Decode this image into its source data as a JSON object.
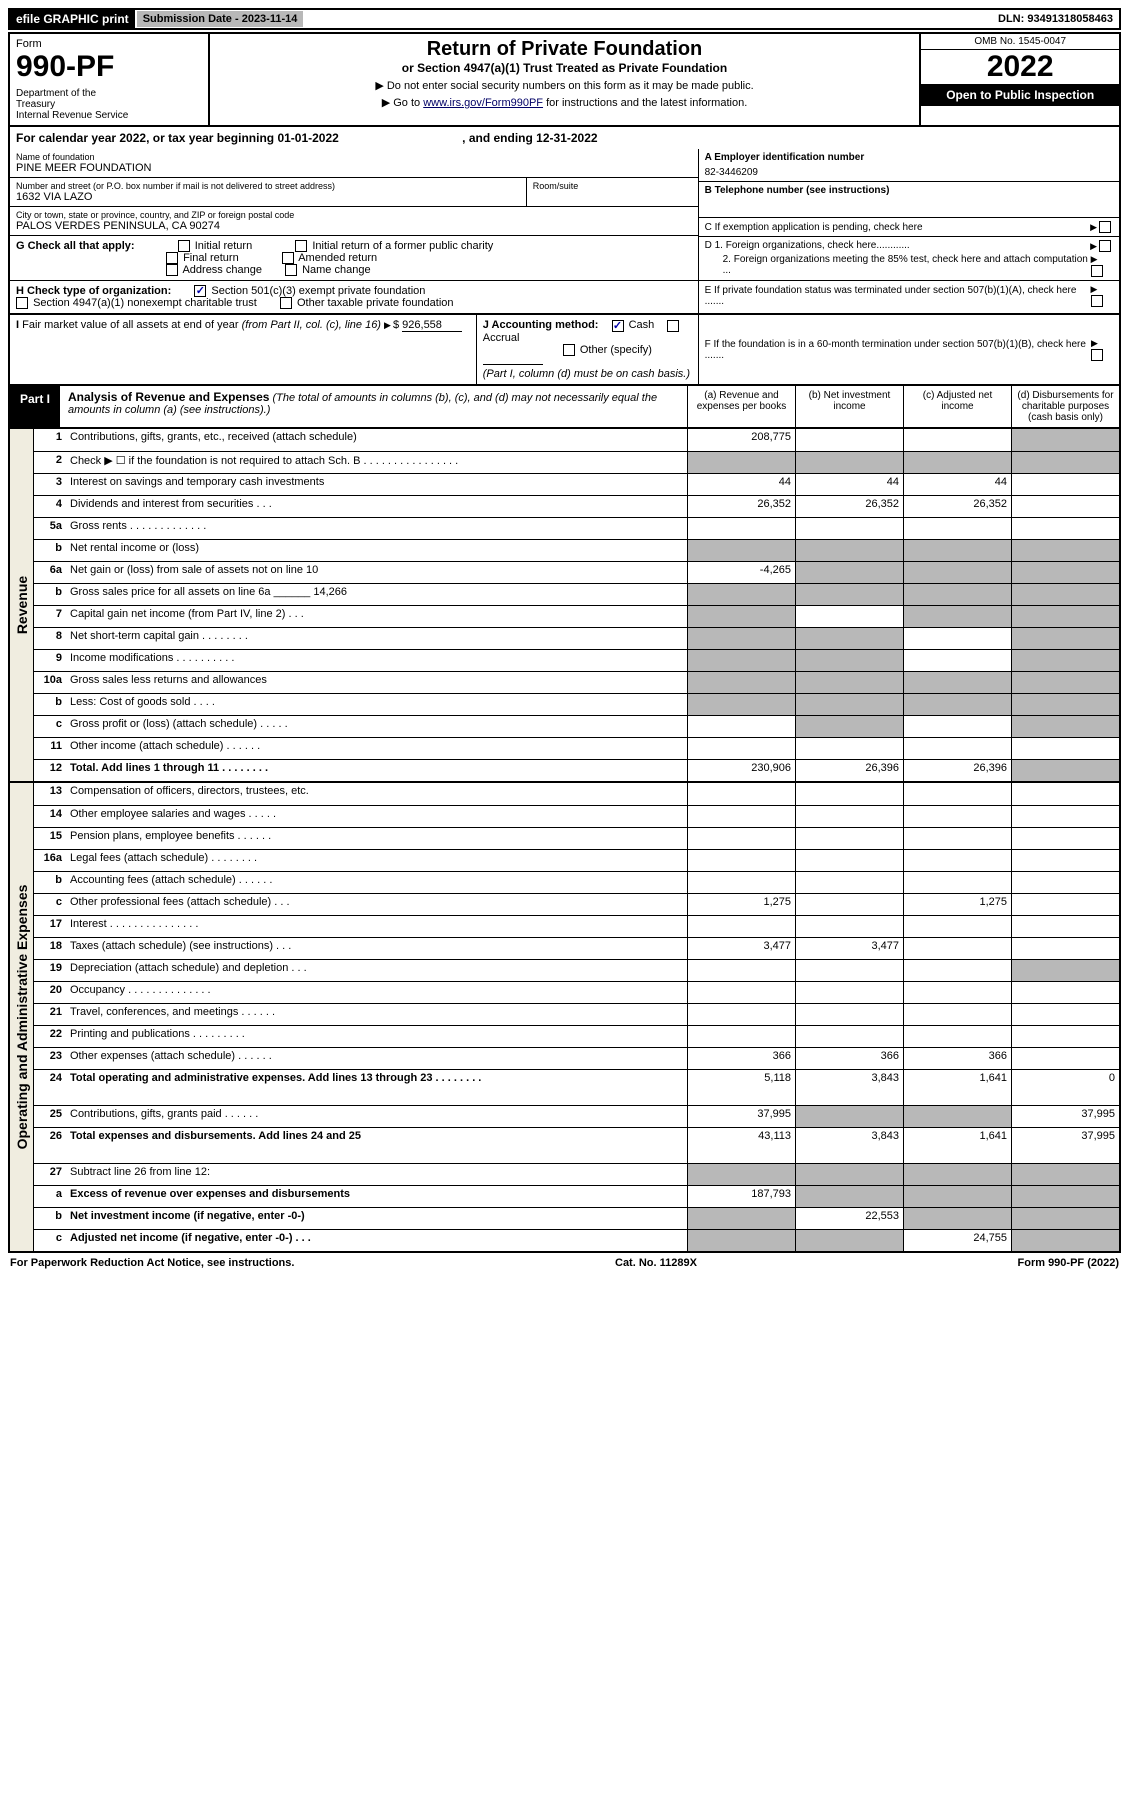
{
  "header": {
    "efile": "efile GRAPHIC print",
    "submission": "Submission Date - 2023-11-14",
    "dln": "DLN: 93491318058463"
  },
  "form": {
    "word": "Form",
    "number": "990-PF",
    "dept": "Department of the Treasury\nInternal Revenue Service",
    "title": "Return of Private Foundation",
    "subtitle": "or Section 4947(a)(1) Trust Treated as Private Foundation",
    "instr1": "▶ Do not enter social security numbers on this form as it may be made public.",
    "instr2_pre": "▶ Go to ",
    "instr2_link": "www.irs.gov/Form990PF",
    "instr2_post": " for instructions and the latest information.",
    "omb": "OMB No. 1545-0047",
    "year": "2022",
    "open": "Open to Public Inspection"
  },
  "cal": {
    "text": "For calendar year 2022, or tax year beginning 01-01-2022",
    "ending": ", and ending 12-31-2022"
  },
  "info": {
    "name_lbl": "Name of foundation",
    "name": "PINE MEER FOUNDATION",
    "addr_lbl": "Number and street (or P.O. box number if mail is not delivered to street address)",
    "addr": "1632 VIA LAZO",
    "room_lbl": "Room/suite",
    "city_lbl": "City or town, state or province, country, and ZIP or foreign postal code",
    "city": "PALOS VERDES PENINSULA, CA  90274",
    "ein_lbl": "A Employer identification number",
    "ein": "82-3446209",
    "tel_lbl": "B Telephone number (see instructions)",
    "c_lbl": "C If exemption application is pending, check here",
    "d1_lbl": "D 1. Foreign organizations, check here............",
    "d2_lbl": "2. Foreign organizations meeting the 85% test, check here and attach computation ...",
    "e_lbl": "E If private foundation status was terminated under section 507(b)(1)(A), check here .......",
    "f_lbl": "F If the foundation is in a 60-month termination under section 507(b)(1)(B), check here .......",
    "g_lbl": "G Check all that apply:",
    "g_opts": [
      "Initial return",
      "Initial return of a former public charity",
      "Final return",
      "Amended return",
      "Address change",
      "Name change"
    ],
    "h_lbl": "H Check type of organization:",
    "h1": "Section 501(c)(3) exempt private foundation",
    "h2": "Section 4947(a)(1) nonexempt charitable trust",
    "h3": "Other taxable private foundation",
    "i_lbl": "I Fair market value of all assets at end of year (from Part II, col. (c), line 16)",
    "i_val": "926,558",
    "j_lbl": "J Accounting method:",
    "j_cash": "Cash",
    "j_accrual": "Accrual",
    "j_other": "Other (specify)",
    "j_note": "(Part I, column (d) must be on cash basis.)"
  },
  "part1": {
    "label": "Part I",
    "title": "Analysis of Revenue and Expenses",
    "note": "(The total of amounts in columns (b), (c), and (d) may not necessarily equal the amounts in column (a) (see instructions).)",
    "cols": [
      "(a) Revenue and expenses per books",
      "(b) Net investment income",
      "(c) Adjusted net income",
      "(d) Disbursements for charitable purposes (cash basis only)"
    ]
  },
  "sections": {
    "revenue": "Revenue",
    "expenses": "Operating and Administrative Expenses"
  },
  "rows": [
    {
      "n": "1",
      "d": "Contributions, gifts, grants, etc., received (attach schedule)",
      "a": "208,775",
      "b": "",
      "c": "",
      "dGray": true
    },
    {
      "n": "2",
      "d": "Check ▶ ☐ if the foundation is not required to attach Sch. B  . . . . . . . . . . . . . . . .",
      "noData": true
    },
    {
      "n": "3",
      "d": "Interest on savings and temporary cash investments",
      "a": "44",
      "b": "44",
      "c": "44"
    },
    {
      "n": "4",
      "d": "Dividends and interest from securities  . . .",
      "a": "26,352",
      "b": "26,352",
      "c": "26,352"
    },
    {
      "n": "5a",
      "d": "Gross rents  . . . . . . . . . . . . ."
    },
    {
      "n": "b",
      "d": "Net rental income or (loss)",
      "noData": true
    },
    {
      "n": "6a",
      "d": "Net gain or (loss) from sale of assets not on line 10",
      "a": "-4,265",
      "bGray": true,
      "cGray": true,
      "dGray": true
    },
    {
      "n": "b",
      "d": "Gross sales price for all assets on line 6a ______ 14,266",
      "noData": true
    },
    {
      "n": "7",
      "d": "Capital gain net income (from Part IV, line 2)  . . .",
      "aGray": true,
      "cGray": true,
      "dGray": true
    },
    {
      "n": "8",
      "d": "Net short-term capital gain  . . . . . . . .",
      "aGray": true,
      "bGray": true,
      "dGray": true
    },
    {
      "n": "9",
      "d": "Income modifications . . . . . . . . . .",
      "aGray": true,
      "bGray": true,
      "dGray": true
    },
    {
      "n": "10a",
      "d": "Gross sales less returns and allowances",
      "noData": true
    },
    {
      "n": "b",
      "d": "Less: Cost of goods sold  . . . .",
      "noData": true
    },
    {
      "n": "c",
      "d": "Gross profit or (loss) (attach schedule)  . . . . .",
      "bGray": true,
      "dGray": true
    },
    {
      "n": "11",
      "d": "Other income (attach schedule)  . . . . . ."
    },
    {
      "n": "12",
      "d": "Total. Add lines 1 through 11  . . . . . . . .",
      "a": "230,906",
      "b": "26,396",
      "c": "26,396",
      "dGray": true,
      "bold": true
    }
  ],
  "exp_rows": [
    {
      "n": "13",
      "d": "Compensation of officers, directors, trustees, etc."
    },
    {
      "n": "14",
      "d": "Other employee salaries and wages  . . . . ."
    },
    {
      "n": "15",
      "d": "Pension plans, employee benefits . . . . . ."
    },
    {
      "n": "16a",
      "d": "Legal fees (attach schedule) . . . . . . . ."
    },
    {
      "n": "b",
      "d": "Accounting fees (attach schedule) . . . . . ."
    },
    {
      "n": "c",
      "d": "Other professional fees (attach schedule)  . . .",
      "a": "1,275",
      "c": "1,275"
    },
    {
      "n": "17",
      "d": "Interest . . . . . . . . . . . . . . ."
    },
    {
      "n": "18",
      "d": "Taxes (attach schedule) (see instructions)  . . .",
      "a": "3,477",
      "b": "3,477"
    },
    {
      "n": "19",
      "d": "Depreciation (attach schedule) and depletion  . . .",
      "dGray": true
    },
    {
      "n": "20",
      "d": "Occupancy . . . . . . . . . . . . . ."
    },
    {
      "n": "21",
      "d": "Travel, conferences, and meetings . . . . . ."
    },
    {
      "n": "22",
      "d": "Printing and publications . . . . . . . . ."
    },
    {
      "n": "23",
      "d": "Other expenses (attach schedule) . . . . . .",
      "a": "366",
      "b": "366",
      "c": "366"
    },
    {
      "n": "24",
      "d": "Total operating and administrative expenses. Add lines 13 through 23  . . . . . . . .",
      "a": "5,118",
      "b": "3,843",
      "c": "1,641",
      "dv": "0",
      "bold": true,
      "tall": true
    },
    {
      "n": "25",
      "d": "Contributions, gifts, grants paid  . . . . . .",
      "a": "37,995",
      "bGray": true,
      "cGray": true,
      "dv": "37,995"
    },
    {
      "n": "26",
      "d": "Total expenses and disbursements. Add lines 24 and 25",
      "a": "43,113",
      "b": "3,843",
      "c": "1,641",
      "dv": "37,995",
      "bold": true,
      "tall": true
    },
    {
      "n": "27",
      "d": "Subtract line 26 from line 12:",
      "noData": true
    },
    {
      "n": "a",
      "d": "Excess of revenue over expenses and disbursements",
      "a": "187,793",
      "bGray": true,
      "cGray": true,
      "dGray": true,
      "bold": true
    },
    {
      "n": "b",
      "d": "Net investment income (if negative, enter -0-)",
      "aGray": true,
      "b": "22,553",
      "cGray": true,
      "dGray": true,
      "bold": true
    },
    {
      "n": "c",
      "d": "Adjusted net income (if negative, enter -0-)  . . .",
      "aGray": true,
      "bGray": true,
      "c": "24,755",
      "dGray": true,
      "bold": true
    }
  ],
  "footer": {
    "left": "For Paperwork Reduction Act Notice, see instructions.",
    "mid": "Cat. No. 11289X",
    "right": "Form 990-PF (2022)"
  }
}
